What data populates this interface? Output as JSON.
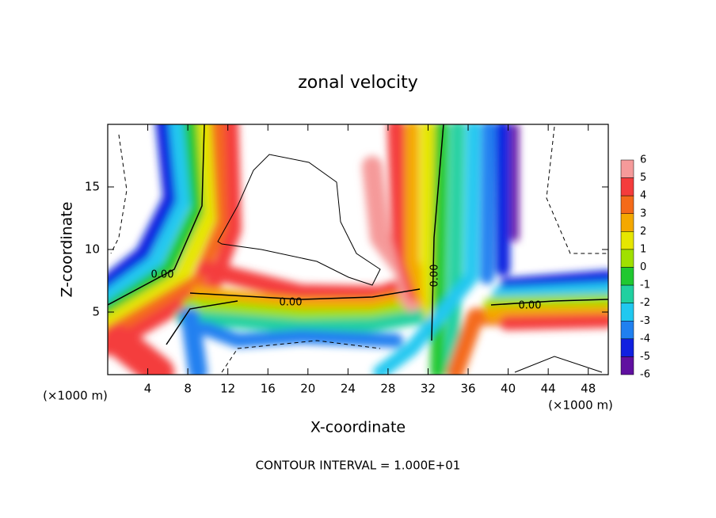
{
  "chart_data": {
    "type": "contour",
    "title": "zonal velocity",
    "xlabel": "X-coordinate",
    "ylabel": "Z-coordinate",
    "x_unit_left": "(×1000 m)",
    "x_unit_right": "(×1000 m)",
    "xlim": [
      0,
      50
    ],
    "xticks": [
      4,
      8,
      12,
      16,
      20,
      24,
      28,
      32,
      36,
      40,
      44,
      48
    ],
    "ylim": [
      0,
      20
    ],
    "yticks": [
      5,
      10,
      15
    ],
    "footer": "CONTOUR INTERVAL = 1.000E+01",
    "contour_labels": [
      "0.00",
      "0.00",
      "0.00",
      "0.00"
    ],
    "colorbar": {
      "levels": [
        6,
        5,
        4,
        3,
        2,
        1,
        0,
        -1,
        -2,
        -3,
        -4,
        -5,
        -6
      ],
      "colors": [
        "#f59a9a",
        "#f43c3c",
        "#f46a1a",
        "#f4a800",
        "#e6e600",
        "#a0e000",
        "#20c830",
        "#20d0a0",
        "#20c8f0",
        "#2080f0",
        "#1020e0",
        "#6010a0"
      ]
    }
  }
}
